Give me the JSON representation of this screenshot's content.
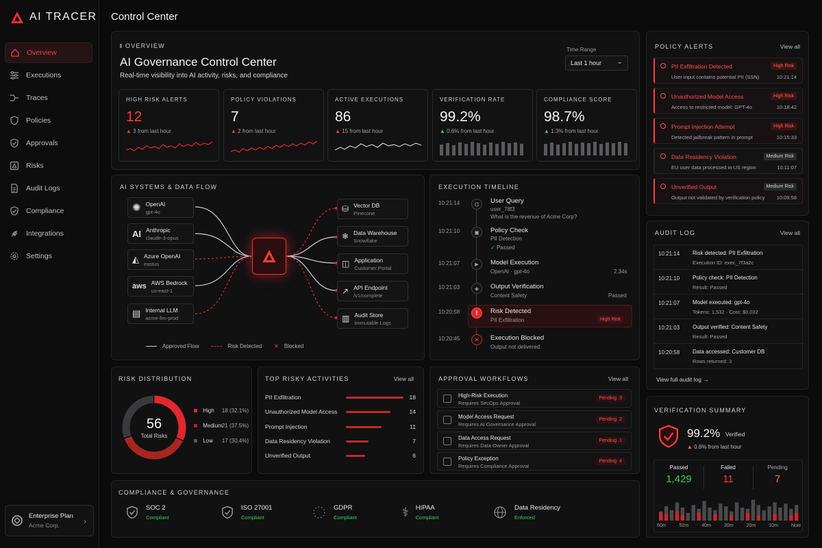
{
  "app": {
    "name": "AI TRACER"
  },
  "sidebar": {
    "items": [
      {
        "label": "Overview",
        "active": true
      },
      {
        "label": "Executions"
      },
      {
        "label": "Traces"
      },
      {
        "label": "Policies"
      },
      {
        "label": "Approvals"
      },
      {
        "label": "Risks"
      },
      {
        "label": "Audit Logs"
      },
      {
        "label": "Compliance"
      },
      {
        "label": "Integrations"
      },
      {
        "label": "Settings"
      }
    ],
    "plan": {
      "title": "Enterprise Plan",
      "org": "Acme Corp."
    }
  },
  "header": {
    "title": "Control Center"
  },
  "overview": {
    "eyebrow": "OVERVIEW",
    "title": "AI Governance Control Center",
    "subtitle": "Real-time visibility into AI activity, risks, and compliance",
    "time_range_label": "Time Range",
    "time_range_value": "Last 1 hour"
  },
  "kpis": [
    {
      "label": "HIGH RISK ALERTS",
      "value": "12",
      "change": "3 from last hour",
      "trend": "up-bad"
    },
    {
      "label": "POLICY VIOLATIONS",
      "value": "7",
      "change": "2 from last hour",
      "trend": "up-bad"
    },
    {
      "label": "ACTIVE EXECUTIONS",
      "value": "86",
      "change": "15 from last hour",
      "trend": "up-bad"
    },
    {
      "label": "VERIFICATION RATE",
      "value": "99.2%",
      "change": "0.6% from last hour",
      "trend": "up-good"
    },
    {
      "label": "COMPLIANCE SCORE",
      "value": "98.7%",
      "change": "1.3% from last hour",
      "trend": "up-good"
    }
  ],
  "flow": {
    "title": "AI SYSTEMS & DATA FLOW",
    "sources": [
      {
        "name": "OpenAI",
        "sub": "gpt-4o",
        "icon": "openai-icon"
      },
      {
        "name": "Anthropic",
        "sub": "claude-3-opus",
        "icon": "anthropic-icon"
      },
      {
        "name": "Azure OpenAI",
        "sub": "eastus",
        "icon": "azure-icon"
      },
      {
        "name": "AWS Bedrock",
        "sub": "us-east-1",
        "icon": "aws-icon"
      },
      {
        "name": "Internal LLM",
        "sub": "acme-llm-prod",
        "icon": "server-icon"
      }
    ],
    "targets": [
      {
        "name": "Vector DB",
        "sub": "Pinecone",
        "icon": "database-icon"
      },
      {
        "name": "Data Warehouse",
        "sub": "Snowflake",
        "icon": "snowflake-icon"
      },
      {
        "name": "Application",
        "sub": "Customer Portal",
        "icon": "chart-icon"
      },
      {
        "name": "API Endpoint",
        "sub": "/v1/complete",
        "icon": "api-icon"
      },
      {
        "name": "Audit Store",
        "sub": "Immutable Logs",
        "icon": "log-icon"
      }
    ],
    "legend": {
      "approved": "Approved Flow",
      "risk": "Risk Detected",
      "blocked": "Blocked"
    }
  },
  "timeline": {
    "title": "EXECUTION TIMELINE",
    "events": [
      {
        "time": "10:21:14",
        "title": "User Query",
        "sub": "user_78f3",
        "sub2": "What is the revenue of Acme Corp?"
      },
      {
        "time": "10:21:10",
        "title": "Policy Check",
        "sub": "PII Detection",
        "sub2": "Passed"
      },
      {
        "time": "10:21:07",
        "title": "Model Execution",
        "sub": "OpenAI · gpt-4o",
        "right": "2.34s"
      },
      {
        "time": "10:21:03",
        "title": "Output Verification",
        "sub": "Content Safety",
        "right": "Passed"
      },
      {
        "time": "10:20:58",
        "title": "Risk Detected",
        "sub": "PII Exfiltration",
        "right": "High Risk"
      },
      {
        "time": "10:20:45",
        "title": "Execution Blocked",
        "sub": "Output not delivered"
      }
    ]
  },
  "policy_alerts": {
    "title": "POLICY ALERTS",
    "view_all": "View all",
    "items": [
      {
        "title": "PII Exfiltration Detected",
        "sub": "User input contains potential PII (SSN)",
        "badge": "High Risk",
        "time": "10:21:14",
        "level": "high"
      },
      {
        "title": "Unauthorized Model Access",
        "sub": "Access to restricted model: GPT-4o",
        "badge": "High Risk",
        "time": "10:18:42",
        "level": "high"
      },
      {
        "title": "Prompt Injection Attempt",
        "sub": "Detected jailbreak pattern in prompt",
        "badge": "High Risk",
        "time": "10:15:33",
        "level": "high"
      },
      {
        "title": "Data Residency Violation",
        "sub": "EU user data processed in US region",
        "badge": "Medium Risk",
        "time": "10:11:07",
        "level": "medium"
      },
      {
        "title": "Unverified Output",
        "sub": "Output not validated by verification policy",
        "badge": "Medium Risk",
        "time": "10:09:58",
        "level": "medium"
      }
    ]
  },
  "audit_log": {
    "title": "AUDIT LOG",
    "view_all": "View all",
    "footer": "View full audit log →",
    "rows": [
      {
        "time": "10:21:14",
        "a": "Risk detected: PII Exfiltration",
        "b": "Execution ID: exec_7f3a2c"
      },
      {
        "time": "10:21:10",
        "a": "Policy check: PII Detection",
        "b": "Result: Passed"
      },
      {
        "time": "10:21:07",
        "a": "Model executed: gpt-4o",
        "b": "Tokens: 1,532 · Cost: $0.032"
      },
      {
        "time": "10:21:03",
        "a": "Output verified: Content Safety",
        "b": "Result: Passed"
      },
      {
        "time": "10:20:58",
        "a": "Data accessed: Customer DB",
        "b": "Rows returned: 3"
      }
    ]
  },
  "risk_distribution": {
    "title": "RISK DISTRIBUTION",
    "total": "56",
    "total_label": "Total Risks",
    "slices": [
      {
        "label": "High",
        "value": 18,
        "text": "18 (32.1%)",
        "color": "#e0282e"
      },
      {
        "label": "Medium",
        "value": 21,
        "text": "21 (37.5%)",
        "color": "#a8261f"
      },
      {
        "label": "Low",
        "value": 17,
        "text": "17 (30.4%)",
        "color": "#3a3a3c"
      }
    ]
  },
  "top_risky": {
    "title": "TOP RISKY ACTIVITIES",
    "view_all": "View all",
    "items": [
      {
        "label": "PII Exfiltration",
        "value": 18
      },
      {
        "label": "Unauthorized Model Access",
        "value": 14
      },
      {
        "label": "Prompt Injection",
        "value": 11
      },
      {
        "label": "Data Residency Violation",
        "value": 7
      },
      {
        "label": "Unverified Output",
        "value": 6
      }
    ]
  },
  "approvals": {
    "title": "APPROVAL WORKFLOWS",
    "view_all": "View all",
    "items": [
      {
        "title": "High-Risk Execution",
        "sub": "Requires SecOps Approval",
        "status": "Pending",
        "count": "3"
      },
      {
        "title": "Model Access Request",
        "sub": "Requires AI Governance Approval",
        "status": "Pending",
        "count": "2"
      },
      {
        "title": "Data Access Request",
        "sub": "Requires Data Owner Approval",
        "status": "Pending",
        "count": "1"
      },
      {
        "title": "Policy Exception",
        "sub": "Requires Compliance Approval",
        "status": "Pending",
        "count": "4"
      }
    ]
  },
  "compliance": {
    "title": "COMPLIANCE & GOVERNANCE",
    "items": [
      {
        "name": "SOC 2",
        "status": "Compliant"
      },
      {
        "name": "ISO 27001",
        "status": "Compliant"
      },
      {
        "name": "GDPR",
        "status": "Compliant"
      },
      {
        "name": "HIPAA",
        "status": "Compliant"
      },
      {
        "name": "Data Residency",
        "status": "Enforced"
      }
    ]
  },
  "verification": {
    "title": "VERIFICATION SUMMARY",
    "rate": "99.2%",
    "rate_label": "Verified",
    "change": "0.6% from last hour",
    "passed_label": "Passed",
    "passed": "1,429",
    "failed_label": "Failed",
    "failed": "11",
    "pending_label": "Pending",
    "pending": "7",
    "axis": [
      "60m",
      "50m",
      "40m",
      "30m",
      "20m",
      "10m",
      "Now"
    ]
  },
  "colors": {
    "accent": "#ff3b3b",
    "good": "#3ccf5a",
    "warn": "#f0783c",
    "bg": "#0b0b0c"
  }
}
